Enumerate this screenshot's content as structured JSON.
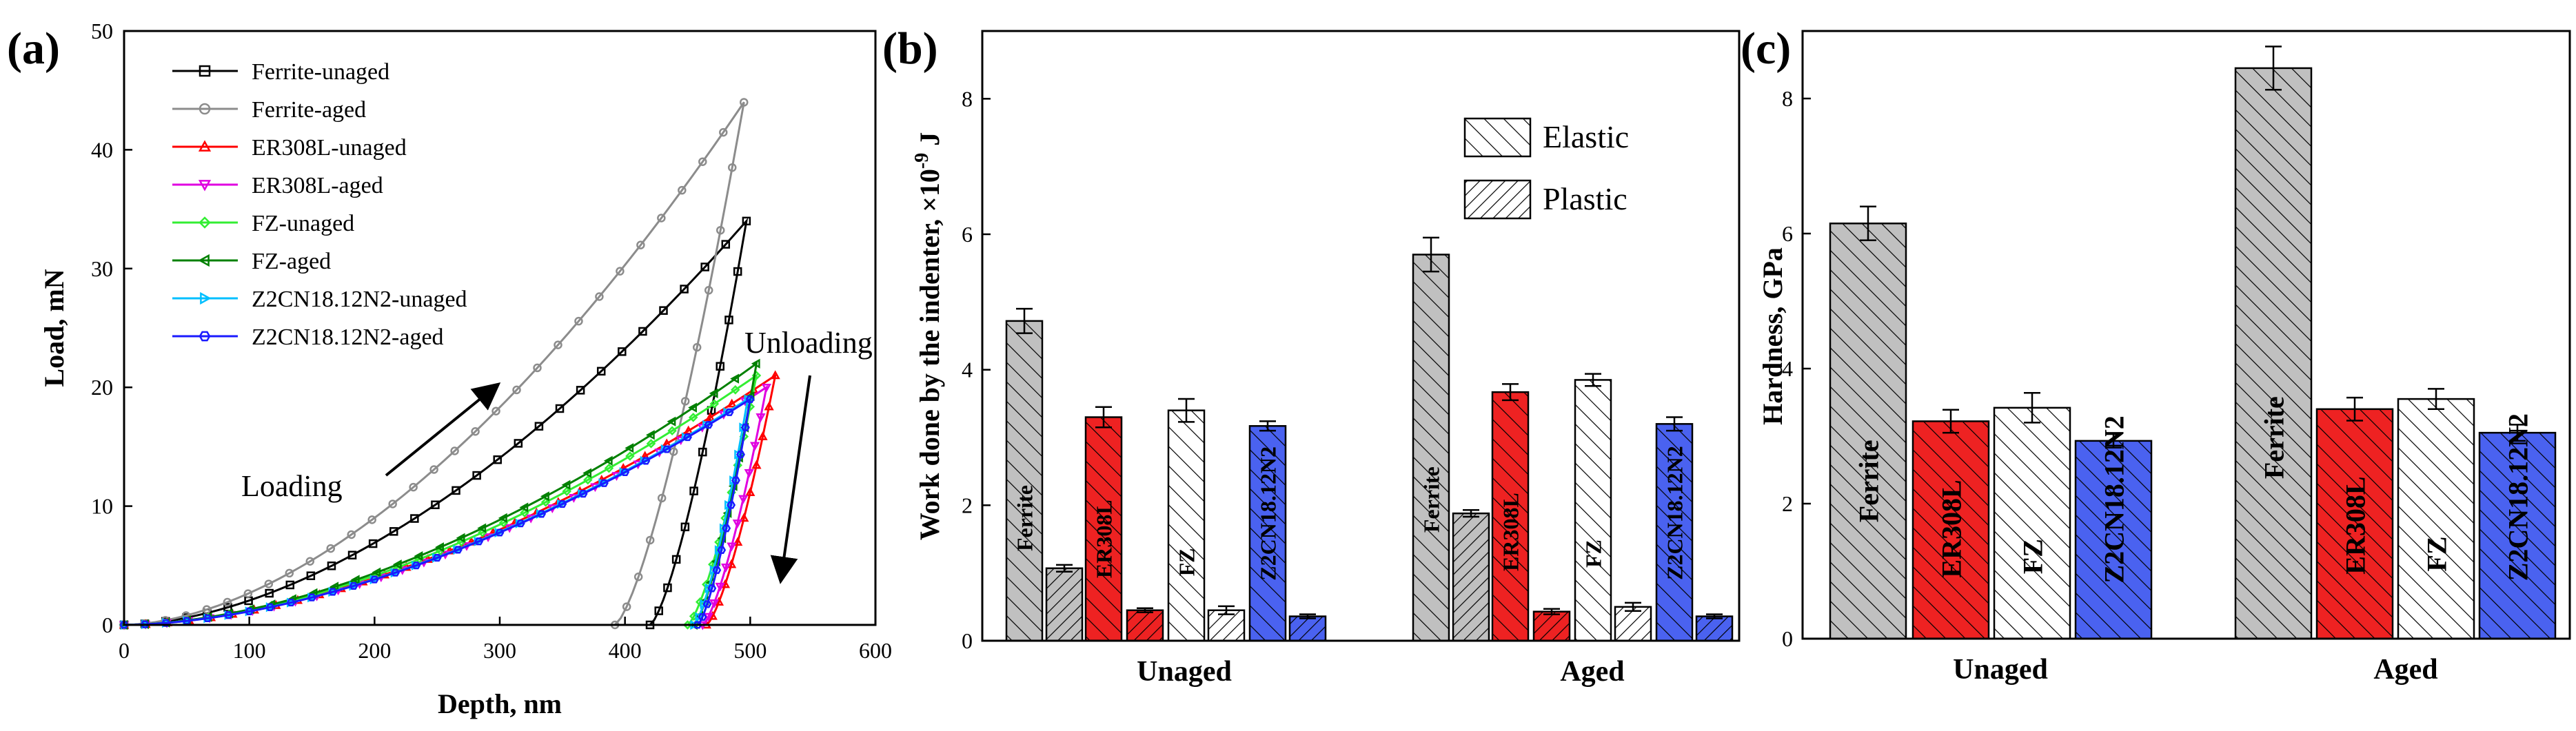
{
  "chart_data": [
    {
      "panel": "(a)",
      "type": "line",
      "xlabel": "Depth, nm",
      "ylabel": "Load, mN",
      "xlim": [
        0,
        600
      ],
      "ylim": [
        0,
        50
      ],
      "xticks": [
        0,
        100,
        200,
        300,
        400,
        500,
        600
      ],
      "yticks": [
        0,
        10,
        20,
        30,
        40,
        50
      ],
      "legend_position": "top-left",
      "annotations": {
        "loading": "Loading",
        "unloading": "Unloading"
      },
      "series": [
        {
          "name": "Ferrite-unaged",
          "color": "#000000",
          "marker": "square",
          "max_depth": 497,
          "max_load": 34,
          "residual_depth": 420
        },
        {
          "name": "Ferrite-aged",
          "color": "#8c8c8c",
          "marker": "circle",
          "max_depth": 495,
          "max_load": 44,
          "residual_depth": 392
        },
        {
          "name": "ER308L-unaged",
          "color": "#ff0000",
          "marker": "triangle-up",
          "max_depth": 520,
          "max_load": 21,
          "residual_depth": 465
        },
        {
          "name": "ER308L-aged",
          "color": "#e000e0",
          "marker": "triangle-down",
          "max_depth": 513,
          "max_load": 20,
          "residual_depth": 462
        },
        {
          "name": "FZ-unaged",
          "color": "#33ee33",
          "marker": "diamond",
          "max_depth": 505,
          "max_load": 21,
          "residual_depth": 450
        },
        {
          "name": "FZ-aged",
          "color": "#008000",
          "marker": "triangle-left",
          "max_depth": 505,
          "max_load": 22,
          "residual_depth": 455
        },
        {
          "name": "Z2CN18.12N2-unaged",
          "color": "#00bfff",
          "marker": "triangle-right",
          "max_depth": 498,
          "max_load": 19,
          "residual_depth": 455
        },
        {
          "name": "Z2CN18.12N2-aged",
          "color": "#1a1aff",
          "marker": "hexagon",
          "max_depth": 500,
          "max_load": 19,
          "residual_depth": 458
        }
      ]
    },
    {
      "panel": "(b)",
      "type": "bar",
      "ylabel": "Work done by the indenter, ×10⁻⁹ J",
      "ylabel_main": "Work done by the indenter, ×10",
      "ylabel_exp": "-9",
      "ylabel_unit": " J",
      "ylim": [
        0,
        9
      ],
      "yticks": [
        0,
        2,
        4,
        6,
        8
      ],
      "legend_position": "top-right",
      "legend": [
        "Elastic",
        "Plastic"
      ],
      "categories": [
        "Unaged",
        "Aged"
      ],
      "materials": [
        "Ferrite",
        "ER308L",
        "FZ",
        "Z2CN18.12N2"
      ],
      "material_colors": [
        "#c0c0c0",
        "#ee2222",
        "#ffffff",
        "#4a62f0"
      ],
      "series": [
        {
          "name": "Elastic",
          "values": [
            [
              4.72,
              3.3,
              3.4,
              3.17
            ],
            [
              5.7,
              3.67,
              3.85,
              3.2
            ]
          ],
          "errors": [
            [
              0.18,
              0.15,
              0.17,
              0.07
            ],
            [
              0.25,
              0.12,
              0.09,
              0.1
            ]
          ]
        },
        {
          "name": "Plastic",
          "values": [
            [
              1.07,
              0.45,
              0.45,
              0.36
            ],
            [
              1.88,
              0.43,
              0.5,
              0.36
            ]
          ],
          "errors": [
            [
              0.05,
              0.03,
              0.06,
              0.03
            ],
            [
              0.05,
              0.04,
              0.06,
              0.03
            ]
          ]
        }
      ]
    },
    {
      "panel": "(c)",
      "type": "bar",
      "ylabel": "Hardness, GPa",
      "ylim": [
        0,
        9
      ],
      "yticks": [
        0,
        2,
        4,
        6,
        8
      ],
      "categories": [
        "Unaged",
        "Aged"
      ],
      "materials": [
        "Ferrite",
        "ER308L",
        "FZ",
        "Z2CN18.12N2"
      ],
      "material_colors": [
        "#c0c0c0",
        "#ee2222",
        "#ffffff",
        "#4a62f0"
      ],
      "series": [
        {
          "name": "Hardness",
          "values": [
            [
              6.15,
              3.22,
              3.42,
              2.93
            ],
            [
              8.45,
              3.4,
              3.55,
              3.05
            ]
          ],
          "errors": [
            [
              0.25,
              0.17,
              0.22,
              0.1
            ],
            [
              0.32,
              0.17,
              0.15,
              0.12
            ]
          ]
        }
      ]
    }
  ]
}
